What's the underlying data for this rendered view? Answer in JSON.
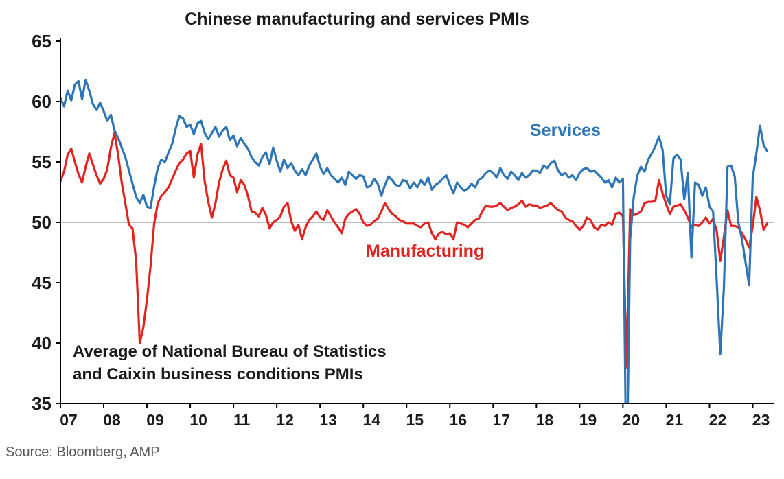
{
  "page": {
    "title": "Chinese manufacturing and services PMIs",
    "source": "Source: Bloomberg, AMP",
    "annotation": {
      "line1": "Average of National Bureau of Statistics",
      "line2": "and Caixin business conditions PMIs"
    }
  },
  "chart_data": {
    "type": "line",
    "title": "Chinese manufacturing and services PMIs",
    "x_unit": "monthly",
    "x_start_year": 2007,
    "x_start_month": 1,
    "xlim": [
      2007,
      2023.5
    ],
    "ylim": [
      35,
      65
    ],
    "y_ticks": [
      35,
      40,
      45,
      50,
      55,
      60,
      65
    ],
    "x_tick_years": [
      2007,
      2008,
      2009,
      2010,
      2011,
      2012,
      2013,
      2014,
      2015,
      2016,
      2017,
      2018,
      2019,
      2020,
      2021,
      2022,
      2023
    ],
    "x_tick_labels": [
      "07",
      "08",
      "09",
      "10",
      "11",
      "12",
      "13",
      "14",
      "15",
      "16",
      "17",
      "18",
      "19",
      "20",
      "21",
      "22",
      "23"
    ],
    "reference_line_y": 50,
    "reference_line_color": "#a6a6a6",
    "axis_color": "#000000",
    "grid": false,
    "legend_position": "inline-labels",
    "series": [
      {
        "name": "Services",
        "color": "#2e75b6",
        "values": [
          60.3,
          59.6,
          60.9,
          60.1,
          61.4,
          61.7,
          60.2,
          61.8,
          60.9,
          59.8,
          59.3,
          59.9,
          59.2,
          58.4,
          58.9,
          57.6,
          57.0,
          56.2,
          55.4,
          54.3,
          53.2,
          52.1,
          51.6,
          52.3,
          51.3,
          51.2,
          53.0,
          54.5,
          55.2,
          55.0,
          55.8,
          56.5,
          57.8,
          58.8,
          58.6,
          57.9,
          58.1,
          57.3,
          58.2,
          58.4,
          57.4,
          56.9,
          57.4,
          57.9,
          57.1,
          57.6,
          57.9,
          56.8,
          57.2,
          56.3,
          57.0,
          56.5,
          56.1,
          55.4,
          55.0,
          54.7,
          55.4,
          55.8,
          54.8,
          56.2,
          55.1,
          54.2,
          55.2,
          54.5,
          54.9,
          54.3,
          53.9,
          54.4,
          53.9,
          54.7,
          55.2,
          55.7,
          54.6,
          54.0,
          54.5,
          53.9,
          53.6,
          53.3,
          53.7,
          53.1,
          54.2,
          53.9,
          53.6,
          53.9,
          53.8,
          52.9,
          53.0,
          53.6,
          53.2,
          52.2,
          53.1,
          53.8,
          53.5,
          53.1,
          53.0,
          53.5,
          53.4,
          52.8,
          53.3,
          52.9,
          53.5,
          53.1,
          53.7,
          52.7,
          53.1,
          53.3,
          53.6,
          53.9,
          53.1,
          52.4,
          53.3,
          52.9,
          52.6,
          52.8,
          53.2,
          52.9,
          53.5,
          53.7,
          54.1,
          54.3,
          54.1,
          53.7,
          54.5,
          53.9,
          53.6,
          54.2,
          53.9,
          53.5,
          54.1,
          53.7,
          53.9,
          54.3,
          54.3,
          54.1,
          54.7,
          54.5,
          54.9,
          55.1,
          54.3,
          53.9,
          54.1,
          53.7,
          53.9,
          53.5,
          54.1,
          54.4,
          54.5,
          54.2,
          54.3,
          54.0,
          53.7,
          53.3,
          53.5,
          52.9,
          53.7,
          53.3,
          53.6,
          27.5,
          48.6,
          52.1,
          53.9,
          54.6,
          54.2,
          55.2,
          55.7,
          56.3,
          57.1,
          56.0,
          52.2,
          51.5,
          55.3,
          55.6,
          55.2,
          51.9,
          54.1,
          47.1,
          53.3,
          53.1,
          52.2,
          52.9,
          51.3,
          50.9,
          45.2,
          39.1,
          44.6,
          54.6,
          54.7,
          53.8,
          50.0,
          48.6,
          46.7,
          44.8,
          53.7,
          55.7,
          58.0,
          56.4,
          55.9
        ]
      },
      {
        "name": "Manufacturing",
        "color": "#e02420",
        "values": [
          53.4,
          54.2,
          55.6,
          56.1,
          55.0,
          54.0,
          53.3,
          54.6,
          55.7,
          54.8,
          53.9,
          53.2,
          53.6,
          54.4,
          56.2,
          57.4,
          55.6,
          53.3,
          51.6,
          49.8,
          49.5,
          46.8,
          40.0,
          41.3,
          43.6,
          46.4,
          49.9,
          51.6,
          52.2,
          52.5,
          52.9,
          53.6,
          54.3,
          54.9,
          55.2,
          55.7,
          55.9,
          53.7,
          55.6,
          56.5,
          53.4,
          51.7,
          50.4,
          51.6,
          53.3,
          54.4,
          55.1,
          53.9,
          53.7,
          52.5,
          53.5,
          53.1,
          52.2,
          50.9,
          50.8,
          50.5,
          51.2,
          50.6,
          49.5,
          50.0,
          50.2,
          50.5,
          51.3,
          51.6,
          50.1,
          49.3,
          49.8,
          48.6,
          49.6,
          50.2,
          50.5,
          50.9,
          50.4,
          50.2,
          51.0,
          50.5,
          50.0,
          49.6,
          49.1,
          50.3,
          50.7,
          50.9,
          51.1,
          50.7,
          50.0,
          49.7,
          49.8,
          50.1,
          50.3,
          50.9,
          51.6,
          51.1,
          50.7,
          50.5,
          50.2,
          50.1,
          49.9,
          49.9,
          49.9,
          49.7,
          49.6,
          49.9,
          50.0,
          49.1,
          48.6,
          49.1,
          49.2,
          49.0,
          49.1,
          48.6,
          50.0,
          49.9,
          49.8,
          49.6,
          49.9,
          50.2,
          50.3,
          50.9,
          51.4,
          51.3,
          51.3,
          51.4,
          51.6,
          51.3,
          51.0,
          51.2,
          51.3,
          51.5,
          51.8,
          51.3,
          51.5,
          51.4,
          51.4,
          51.2,
          51.3,
          51.4,
          51.6,
          51.3,
          51.0,
          50.9,
          50.4,
          50.2,
          50.1,
          49.7,
          49.4,
          49.7,
          50.4,
          50.2,
          49.6,
          49.4,
          49.8,
          49.7,
          50.0,
          49.8,
          50.7,
          50.8,
          50.5,
          38.0,
          51.1,
          50.6,
          50.7,
          50.9,
          51.6,
          51.7,
          51.7,
          51.8,
          53.5,
          52.4,
          51.5,
          50.7,
          51.3,
          51.4,
          51.5,
          51.0,
          50.4,
          49.6,
          49.8,
          49.7,
          50.0,
          50.4,
          49.9,
          50.3,
          49.3,
          46.8,
          48.8,
          51.0,
          49.7,
          49.7,
          49.6,
          49.1,
          48.6,
          47.9,
          49.7,
          52.1,
          51.0,
          49.4,
          49.9
        ]
      }
    ]
  }
}
